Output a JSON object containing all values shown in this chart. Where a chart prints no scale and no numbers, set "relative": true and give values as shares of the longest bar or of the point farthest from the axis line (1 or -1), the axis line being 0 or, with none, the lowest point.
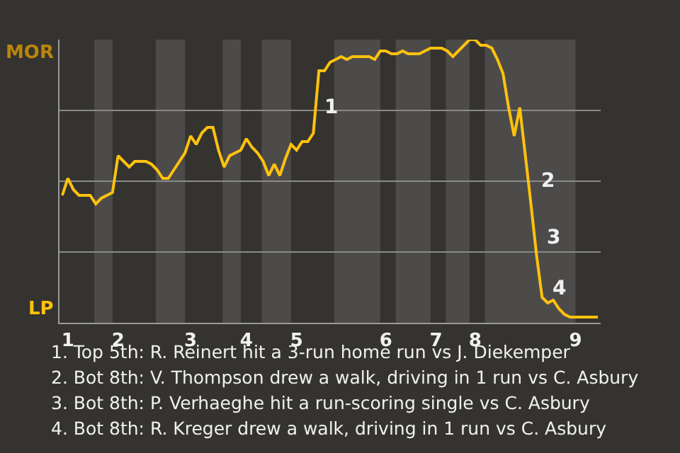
{
  "chart_data": {
    "type": "line",
    "relative": true,
    "grid": "y",
    "marker": "none",
    "line_style": "solid",
    "categories": [
      null,
      "1",
      null,
      null,
      null,
      null,
      null,
      null,
      null,
      null,
      "2",
      null,
      null,
      null,
      null,
      null,
      null,
      null,
      null,
      null,
      null,
      null,
      null,
      "3",
      null,
      null,
      null,
      null,
      null,
      null,
      null,
      null,
      null,
      "4",
      null,
      null,
      null,
      null,
      null,
      null,
      null,
      null,
      "5",
      null,
      null,
      null,
      null,
      null,
      null,
      null,
      null,
      null,
      null,
      null,
      null,
      null,
      null,
      null,
      "6",
      null,
      null,
      null,
      null,
      null,
      null,
      null,
      null,
      "7",
      null,
      null,
      null,
      null,
      null,
      null,
      "8",
      null,
      null,
      null,
      null,
      null,
      null,
      null,
      null,
      null,
      null,
      null,
      null,
      null,
      null,
      null,
      null,
      null,
      "9",
      null,
      null,
      null,
      null
    ],
    "series": [
      {
        "color": "#ffc20e",
        "values": [
          0.45,
          0.51,
          0.47,
          0.45,
          0.45,
          0.45,
          0.42,
          0.44,
          0.45,
          0.46,
          0.59,
          0.57,
          0.55,
          0.57,
          0.57,
          0.57,
          0.56,
          0.54,
          0.51,
          0.51,
          0.54,
          0.57,
          0.6,
          0.66,
          0.63,
          0.67,
          0.69,
          0.69,
          0.61,
          0.55,
          0.59,
          0.6,
          0.61,
          0.65,
          0.62,
          0.6,
          0.57,
          0.52,
          0.56,
          0.52,
          0.58,
          0.63,
          0.61,
          0.64,
          0.64,
          0.67,
          0.89,
          0.89,
          0.92,
          0.93,
          0.94,
          0.93,
          0.94,
          0.94,
          0.94,
          0.94,
          0.93,
          0.96,
          0.96,
          0.95,
          0.95,
          0.96,
          0.95,
          0.95,
          0.95,
          0.96,
          0.97,
          0.97,
          0.97,
          0.96,
          0.94,
          0.96,
          0.98,
          1,
          1,
          0.98,
          0.98,
          0.97,
          0.93,
          0.88,
          0.76,
          0.66,
          0.76,
          0.59,
          0.42,
          0.24,
          0.09,
          0.07,
          0.08,
          0.05,
          0.03,
          0.02,
          0.02,
          0.02,
          0.02,
          0.02,
          0.02
        ]
      }
    ],
    "annotations": [
      "MOR",
      "LP",
      "1",
      "2",
      "3",
      "4",
      "1. Top 5th: R. Reinert hit a 3-run home run vs J. Diekemper",
      "2. Bot 8th: V. Thompson drew a walk, driving in 1 run vs C. Asbury",
      "3. Bot 8th: P. Verhaeghe hit a run-scoring single vs C. Asbury",
      "4. Bot 8th: R. Kreger drew a walk, driving in 1 run vs C. Asbury"
    ]
  }
}
